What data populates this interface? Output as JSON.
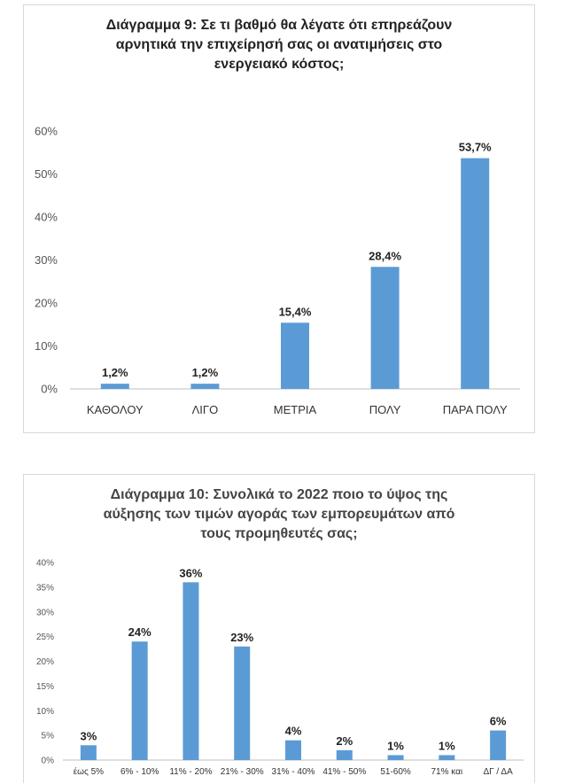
{
  "accent_color": "#5b9bd5",
  "chart_data": [
    {
      "type": "bar",
      "title": "Διάγραμμα 9: Σε τι βαθμό θα λέγατε ότι επηρεάζουν\nαρνητικά την επιχείρησή σας οι ανατιμήσεις στο\nενεργειακό κόστος;",
      "categories": [
        "ΚΑΘΟΛΟΥ",
        "ΛΙΓΟ",
        "ΜΕΤΡΙΑ",
        "ΠΟΛΥ",
        "ΠΑΡΑ ΠΟΛΥ"
      ],
      "values": [
        1.2,
        1.2,
        15.4,
        28.4,
        53.7
      ],
      "data_labels": [
        "1,2%",
        "1,2%",
        "15,4%",
        "28,4%",
        "53,7%"
      ],
      "yticks": [
        "0%",
        "10%",
        "20%",
        "30%",
        "40%",
        "50%",
        "60%"
      ],
      "ylim": [
        0,
        60
      ],
      "grid": false,
      "legend": "none"
    },
    {
      "type": "bar",
      "title": "Διάγραμμα 10: Συνολικά το 2022 ποιο το ύψος της\nαύξησης των τιμών αγοράς των εμπορευμάτων από\nτους προμηθευτές σας;",
      "categories": [
        "έως 5%",
        "6% - 10%",
        "11% - 20%",
        "21% - 30%",
        "31% - 40%",
        "41% - 50%",
        "51-60%",
        "71% και",
        "ΔΓ / ΔΑ"
      ],
      "values": [
        3,
        24,
        36,
        23,
        4,
        2,
        1,
        1,
        6
      ],
      "data_labels": [
        "3%",
        "24%",
        "36%",
        "23%",
        "4%",
        "2%",
        "1%",
        "1%",
        "6%"
      ],
      "yticks": [
        "0%",
        "5%",
        "10%",
        "15%",
        "20%",
        "25%",
        "30%",
        "35%",
        "40%"
      ],
      "ylim": [
        0,
        40
      ],
      "grid": false,
      "legend": "none"
    }
  ]
}
